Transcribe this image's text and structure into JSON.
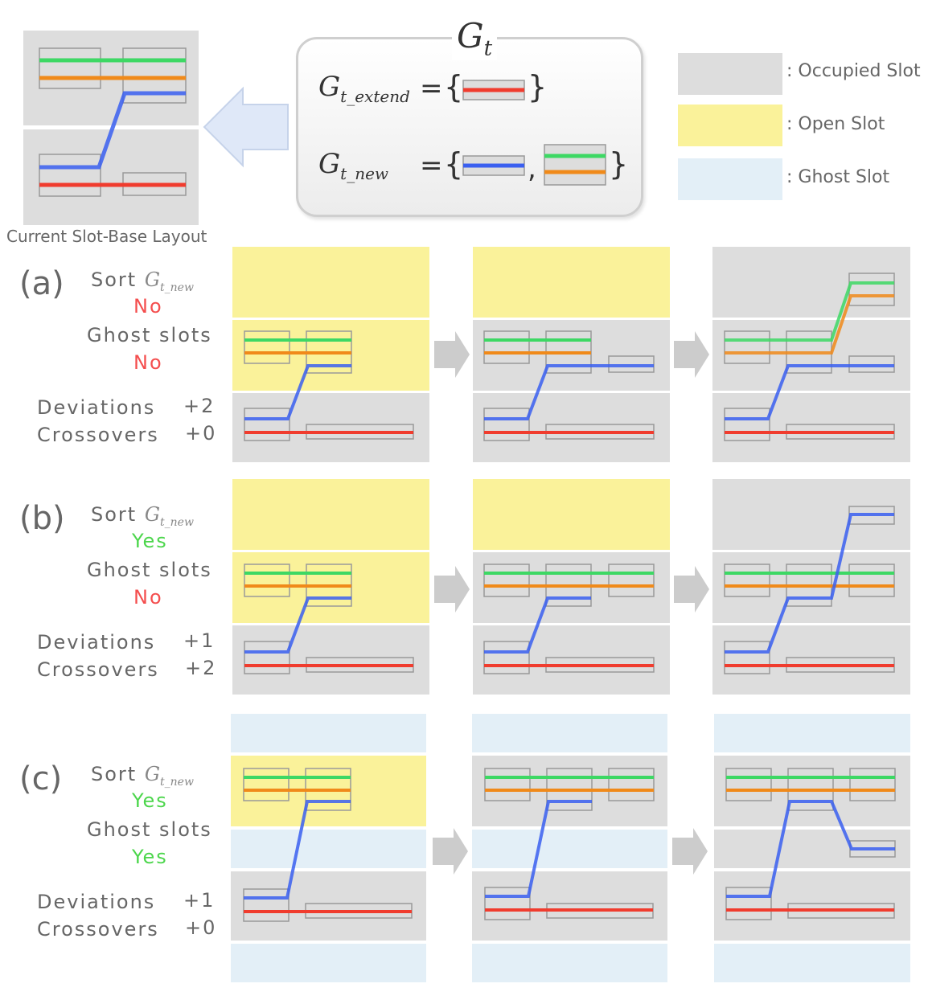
{
  "header": {
    "gt_symbol": "G",
    "gt_sub": "t",
    "extend_symbol": "G",
    "extend_sub": "t_extend",
    "new_symbol": "G",
    "new_sub": "t_new",
    "equals": "=",
    "brace_open": "{",
    "brace_close": "}",
    "comma": ","
  },
  "caption": "Current Slot-Base Layout",
  "legend": [
    {
      "label": ": Occupied Slot",
      "color": "#dddddd"
    },
    {
      "label": ": Open Slot",
      "color": "#faf29a"
    },
    {
      "label": ": Ghost Slot",
      "color": "#e3eff7"
    }
  ],
  "colors": {
    "occupied": "#dddddd",
    "open": "#faf29a",
    "ghost": "#e3eff7",
    "green": "#3dd864",
    "orange": "#f08a1a",
    "blue": "#3a5ff0",
    "red": "#f03c2e",
    "arrow": "#cccccc",
    "back_arrow": "#dfe8f8"
  },
  "rows": [
    {
      "letter": "(a)",
      "sort_label": "Sort",
      "sort_symbol": "G",
      "sort_sub": "t_new",
      "sort_value": "No",
      "ghost_label": "Ghost slots",
      "ghost_value": "No",
      "dev_label": "Deviations",
      "dev_value": "+2",
      "cross_label": "Crossovers",
      "cross_value": "+0"
    },
    {
      "letter": "(b)",
      "sort_label": "Sort",
      "sort_symbol": "G",
      "sort_sub": "t_new",
      "sort_value": "Yes",
      "ghost_label": "Ghost slots",
      "ghost_value": "No",
      "dev_label": "Deviations",
      "dev_value": "+1",
      "cross_label": "Crossovers",
      "cross_value": "+2"
    },
    {
      "letter": "(c)",
      "sort_label": "Sort",
      "sort_symbol": "G",
      "sort_sub": "t_new",
      "sort_value": "Yes",
      "ghost_label": "Ghost slots",
      "ghost_value": "Yes",
      "dev_label": "Deviations",
      "dev_value": "+1",
      "cross_label": "Crossovers",
      "cross_value": "+0"
    }
  ]
}
